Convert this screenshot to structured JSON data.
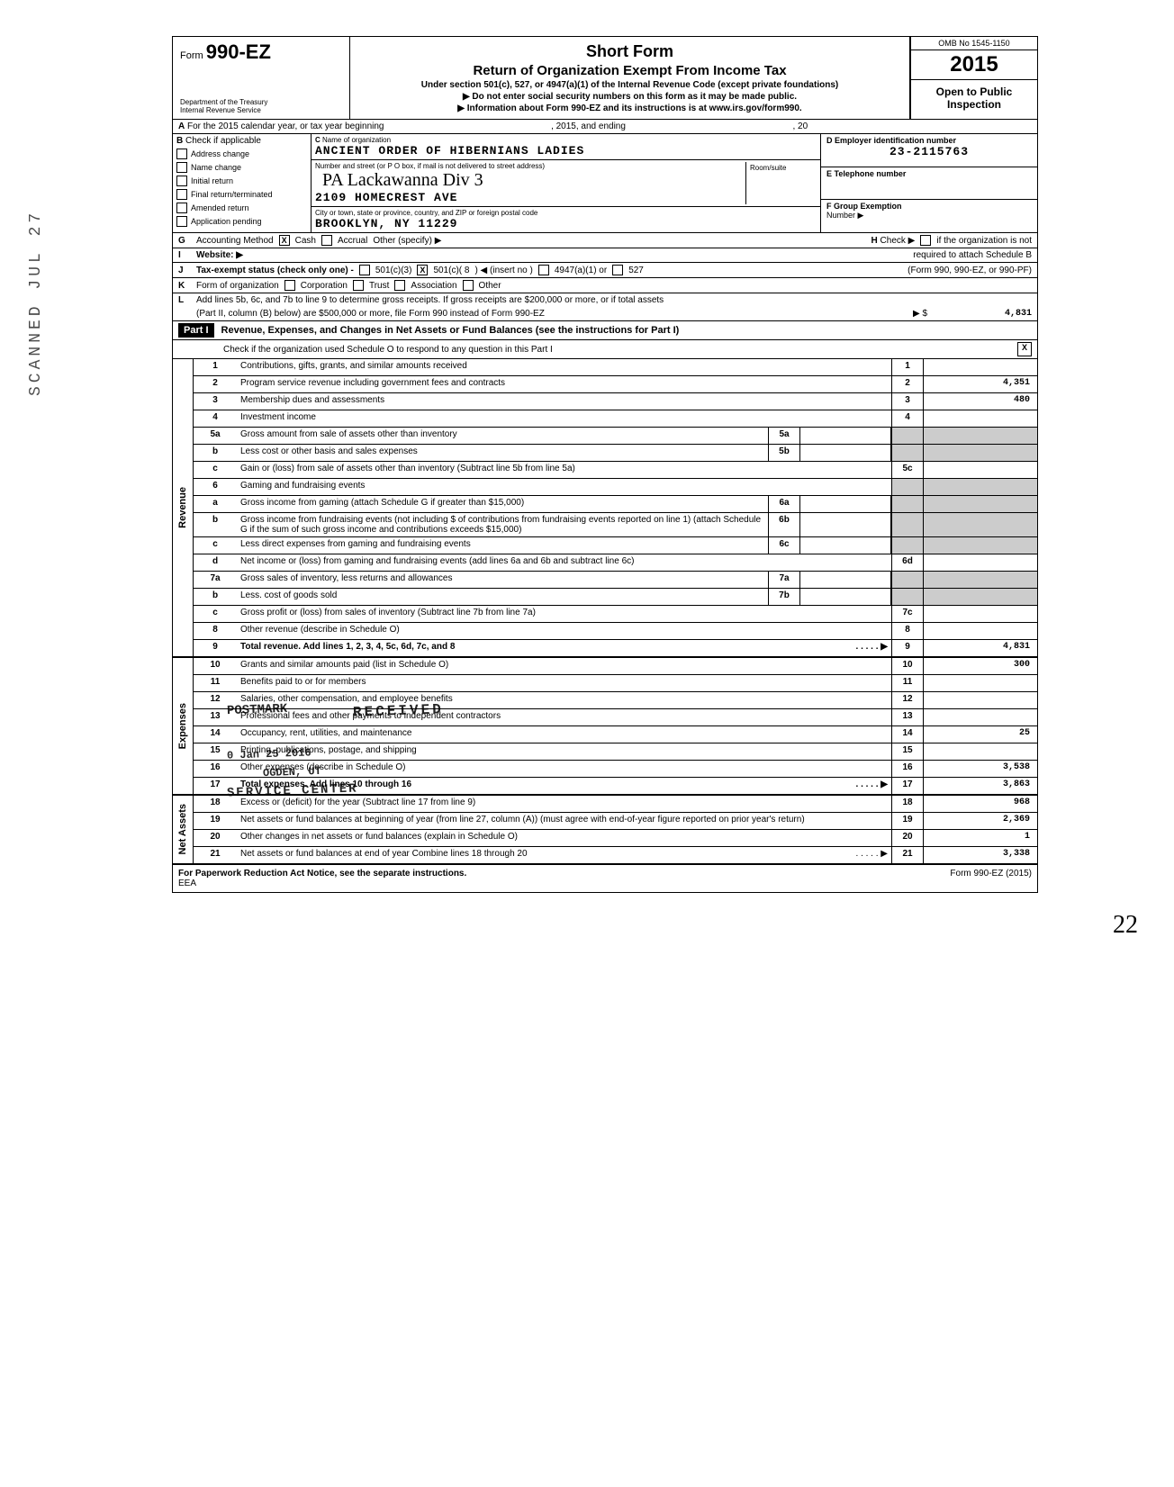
{
  "header": {
    "form_label": "Form",
    "form_number": "990-EZ",
    "dept1": "Department of the Treasury",
    "dept2": "Internal Revenue Service",
    "title1": "Short Form",
    "title2": "Return of Organization Exempt From Income Tax",
    "subtitle": "Under section 501(c), 527, or 4947(a)(1) of the Internal Revenue Code (except private foundations)",
    "instr1": "▶ Do not enter social security numbers on this form as it may be made public.",
    "instr2": "▶ Information about Form 990-EZ and its instructions is at www.irs.gov/form990.",
    "omb": "OMB No 1545-1150",
    "year": "2015",
    "open": "Open to Public",
    "inspection": "Inspection"
  },
  "row_a": {
    "label_a": "A",
    "text1": "For the 2015 calendar year, or tax year beginning",
    "text2": ", 2015, and ending",
    "text3": ", 20"
  },
  "col_b": {
    "label": "B",
    "heading": "Check if applicable",
    "items": [
      "Address change",
      "Name change",
      "Initial return",
      "Final return/terminated",
      "Amended return",
      "Application pending"
    ]
  },
  "col_c": {
    "label": "C",
    "name_label": "Name of organization",
    "name": "ANCIENT ORDER OF HIBERNIANS LADIES",
    "addr_label": "Number and street (or P O box, if mail is not delivered to street address)",
    "handwritten": "PA Lackawanna Div 3",
    "addr": "2109 HOMECREST AVE",
    "room_label": "Room/suite",
    "city_label": "City or town, state or province, country, and ZIP or foreign postal code",
    "city": "BROOKLYN, NY 11229"
  },
  "col_right": {
    "d_label": "D Employer identification number",
    "d_value": "23-2115763",
    "e_label": "E Telephone number",
    "f_label": "F Group Exemption",
    "f_label2": "Number ▶"
  },
  "row_g": {
    "label": "G",
    "text": "Accounting Method",
    "cash": "Cash",
    "accrual": "Accrual",
    "other": "Other (specify) ▶"
  },
  "row_h": {
    "label": "H",
    "text": "Check ▶",
    "text2": "if the organization is not",
    "text3": "required to attach Schedule B",
    "text4": "(Form 990, 990-EZ, or 990-PF)"
  },
  "row_i": {
    "label": "I",
    "text": "Website: ▶"
  },
  "row_j": {
    "label": "J",
    "text": "Tax-exempt status (check only one) -",
    "opt1": "501(c)(3)",
    "opt2": "501(c)( 8",
    "opt2b": ") ◀ (insert no )",
    "opt3": "4947(a)(1) or",
    "opt4": "527"
  },
  "row_k": {
    "label": "K",
    "text": "Form of organization",
    "opt1": "Corporation",
    "opt2": "Trust",
    "opt3": "Association",
    "opt4": "Other"
  },
  "row_l": {
    "label": "L",
    "text1": "Add lines 5b, 6c, and 7b to line 9 to determine gross receipts. If gross receipts are $200,000 or more, or if total assets",
    "text2": "(Part II, column (B) below) are $500,000 or more, file Form 990 instead of Form 990-EZ",
    "arrow": "▶ $",
    "value": "4,831"
  },
  "part1": {
    "label": "Part I",
    "title": "Revenue, Expenses, and Changes in Net Assets or Fund Balances (see the instructions for Part I)",
    "check_text": "Check if the organization used Schedule O to respond to any question in this Part I"
  },
  "sections": {
    "revenue": "Revenue",
    "expenses": "Expenses",
    "netassets": "Net Assets"
  },
  "lines": [
    {
      "n": "1",
      "text": "Contributions, gifts, grants, and similar amounts received",
      "box": "1",
      "val": ""
    },
    {
      "n": "2",
      "text": "Program service revenue including government fees and contracts",
      "box": "2",
      "val": "4,351"
    },
    {
      "n": "3",
      "text": "Membership dues and assessments",
      "box": "3",
      "val": "480"
    },
    {
      "n": "4",
      "text": "Investment income",
      "box": "4",
      "val": ""
    },
    {
      "n": "5a",
      "text": "Gross amount from sale of assets other than inventory",
      "mid": "5a"
    },
    {
      "n": "b",
      "text": "Less cost or other basis and sales expenses",
      "mid": "5b"
    },
    {
      "n": "c",
      "text": "Gain or (loss) from sale of assets other than inventory (Subtract line 5b from line 5a)",
      "box": "5c",
      "val": ""
    },
    {
      "n": "6",
      "text": "Gaming and fundraising events"
    },
    {
      "n": "a",
      "text": "Gross income from gaming (attach Schedule G if greater than $15,000)",
      "mid": "6a"
    },
    {
      "n": "b",
      "text": "Gross income from fundraising events (not including $                            of contributions from fundraising events reported on line 1) (attach Schedule G if the sum of such gross income and contributions exceeds $15,000)",
      "mid": "6b"
    },
    {
      "n": "c",
      "text": "Less direct expenses from gaming and fundraising events",
      "mid": "6c"
    },
    {
      "n": "d",
      "text": "Net income or (loss) from gaming and fundraising events (add lines 6a and 6b and subtract line 6c)",
      "box": "6d",
      "val": ""
    },
    {
      "n": "7a",
      "text": "Gross sales of inventory, less returns and allowances",
      "mid": "7a"
    },
    {
      "n": "b",
      "text": "Less. cost of goods sold",
      "mid": "7b"
    },
    {
      "n": "c",
      "text": "Gross profit or (loss) from sales of inventory (Subtract line 7b from line 7a)",
      "box": "7c",
      "val": ""
    },
    {
      "n": "8",
      "text": "Other revenue (describe in Schedule O)",
      "box": "8",
      "val": ""
    },
    {
      "n": "9",
      "text": "Total revenue. Add lines 1, 2, 3, 4, 5c, 6d, 7c, and 8",
      "box": "9",
      "val": "4,831",
      "bold": true,
      "arrow": true
    },
    {
      "n": "10",
      "text": "Grants and similar amounts paid (list in Schedule O)",
      "box": "10",
      "val": "300"
    },
    {
      "n": "11",
      "text": "Benefits paid to or for members",
      "box": "11",
      "val": ""
    },
    {
      "n": "12",
      "text": "Salaries, other compensation, and employee benefits",
      "box": "12",
      "val": ""
    },
    {
      "n": "13",
      "text": "Professional fees and other payments to independent contractors",
      "box": "13",
      "val": ""
    },
    {
      "n": "14",
      "text": "Occupancy, rent, utilities, and maintenance",
      "box": "14",
      "val": "25"
    },
    {
      "n": "15",
      "text": "Printing, publications, postage, and shipping",
      "box": "15",
      "val": ""
    },
    {
      "n": "16",
      "text": "Other expenses (describe in Schedule O)",
      "box": "16",
      "val": "3,538"
    },
    {
      "n": "17",
      "text": "Total expenses. Add lines 10 through 16",
      "box": "17",
      "val": "3,863",
      "bold": true,
      "arrow": true
    },
    {
      "n": "18",
      "text": "Excess or (deficit) for the year (Subtract line 17 from line 9)",
      "box": "18",
      "val": "968"
    },
    {
      "n": "19",
      "text": "Net assets or fund balances at beginning of year (from line 27, column (A)) (must agree with end-of-year figure reported on prior year's return)",
      "box": "19",
      "val": "2,369"
    },
    {
      "n": "20",
      "text": "Other changes in net assets or fund balances (explain in Schedule O)",
      "box": "20",
      "val": "1"
    },
    {
      "n": "21",
      "text": "Net assets or fund balances at end of year Combine lines 18 through 20",
      "box": "21",
      "val": "3,338",
      "arrow": true
    }
  ],
  "footer": {
    "left": "For Paperwork Reduction Act Notice, see the separate instructions.",
    "eea": "EEA",
    "right": "Form 990-EZ (2015)"
  },
  "stamps": {
    "scanned": "SCANNED JUL 27",
    "postmark": "POSTMARK",
    "received": "RECEIVED",
    "date": "0 Jan 25 2016",
    "ogden": "OGDEN, UT",
    "service": "SERVICE CENTER"
  },
  "page_num": "22"
}
